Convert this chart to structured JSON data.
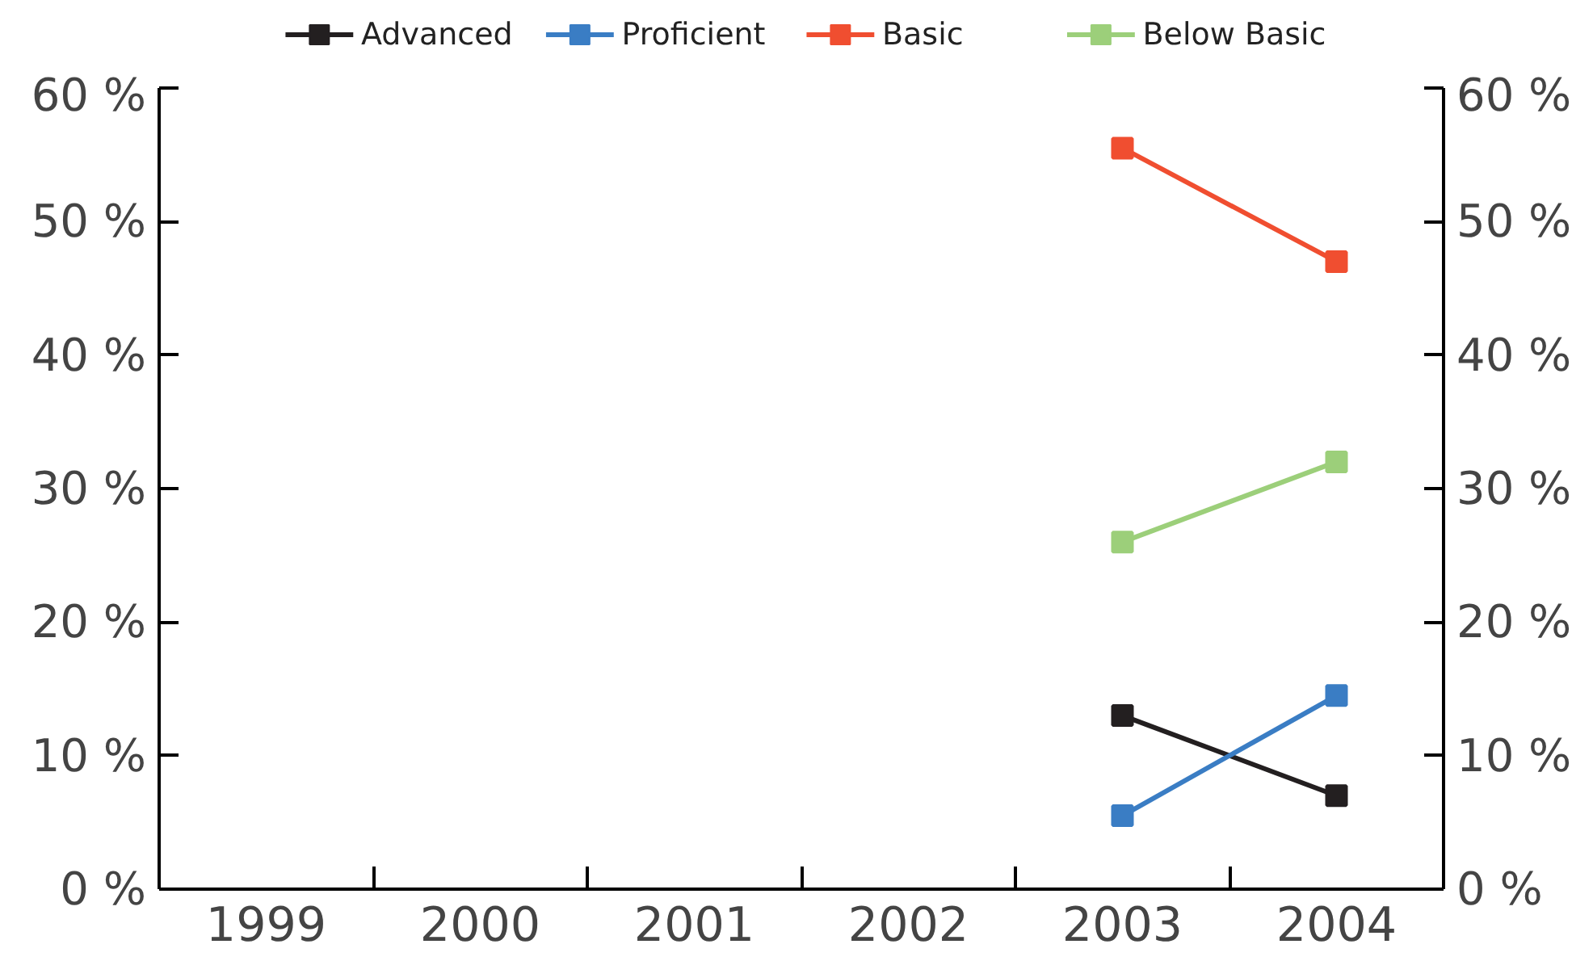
{
  "chart_data": {
    "type": "line",
    "categories": [
      "1999",
      "2000",
      "2001",
      "2002",
      "2003",
      "2004"
    ],
    "series": [
      {
        "name": "Advanced",
        "color": "#231f20",
        "values": [
          null,
          null,
          null,
          null,
          13,
          7
        ]
      },
      {
        "name": "Proficient",
        "color": "#3a7dc4",
        "values": [
          null,
          null,
          null,
          null,
          5.5,
          14.5
        ]
      },
      {
        "name": "Basic",
        "color": "#f04e30",
        "values": [
          null,
          null,
          null,
          null,
          55.5,
          47
        ]
      },
      {
        "name": "Below Basic",
        "color": "#9ccf7a",
        "values": [
          null,
          null,
          null,
          null,
          26,
          32
        ]
      }
    ],
    "ylim": [
      0,
      60
    ],
    "yticks": [
      {
        "value": 0,
        "label": "0 %"
      },
      {
        "value": 10,
        "label": "10 %"
      },
      {
        "value": 20,
        "label": "20 %"
      },
      {
        "value": 30,
        "label": "30 %"
      },
      {
        "value": 40,
        "label": "40 %"
      },
      {
        "value": 50,
        "label": "50 %"
      },
      {
        "value": 60,
        "label": "60 %"
      }
    ],
    "y2lim": [
      0,
      60
    ],
    "y2ticks": [
      {
        "value": 0,
        "label": "0 %"
      },
      {
        "value": 10,
        "label": "10 %"
      },
      {
        "value": 20,
        "label": "20 %"
      },
      {
        "value": 30,
        "label": "30 %"
      },
      {
        "value": 40,
        "label": "40 %"
      },
      {
        "value": 50,
        "label": "50 %"
      },
      {
        "value": 60,
        "label": "60 %"
      }
    ],
    "grid": false,
    "legend": "top",
    "marker": "square",
    "line_style": "solid"
  }
}
